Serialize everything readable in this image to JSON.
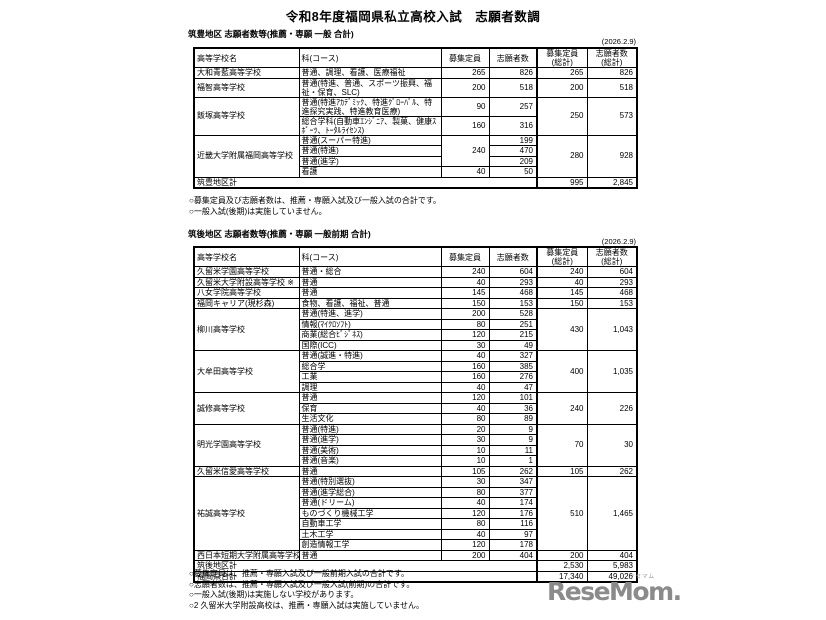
{
  "title": "令和8年度福岡県私立高校入試　志願者数調",
  "logo": {
    "text": "ReseMom.",
    "ruby": "リセマム"
  },
  "tables": [
    {
      "heading": "筑豊地区 志願者数等(推薦・専願 一般 合計)",
      "date": "(2026.2.9)",
      "headers": [
        "高等学校名",
        "科(コース)",
        "募集定員",
        "志願者数",
        "募集定員\n(総計)",
        "志願者数\n(総計)"
      ],
      "schools": [
        {
          "name": "大和青藍高等学校",
          "rows": [
            {
              "course": "普通、調理、看護、医療福祉",
              "capacity": "265",
              "applicants": "826"
            }
          ],
          "total_capacity": "265",
          "total_applicants": "826"
        },
        {
          "name": "福智高等学校",
          "rows": [
            {
              "course": "普通(特進、普通、スポーツ振興、福祉・保育、SLC)",
              "capacity": "200",
              "applicants": "518"
            }
          ],
          "total_capacity": "200",
          "total_applicants": "518"
        },
        {
          "name": "飯塚高等学校",
          "rows": [
            {
              "course": "普通(特進ｱｶﾃﾞﾐｯｸ、特進ｸﾞﾛｰﾊﾞﾙ、特進探究実践、特進教育医療)",
              "capacity": "90",
              "applicants": "257"
            },
            {
              "course": "総合学科(自動車ｴﾝｼﾞﾆｱ、製菓、健康ｽﾎﾟｰﾂ、ﾄｰﾀﾙﾗｲｾﾝｽ)",
              "capacity": "160",
              "applicants": "316"
            }
          ],
          "total_capacity": "250",
          "total_applicants": "573"
        },
        {
          "name": "近畿大学附属福岡高等学校",
          "rows": [
            {
              "course": "普通(スーパー特進)",
              "capacity": "240",
              "capacity_rowspan": 3,
              "applicants": "199"
            },
            {
              "course": "普通(特進)",
              "applicants": "470"
            },
            {
              "course": "普通(進学)",
              "applicants": "209"
            },
            {
              "course": "看護",
              "capacity": "40",
              "applicants": "50"
            }
          ],
          "total_capacity": "280",
          "total_applicants": "928"
        }
      ],
      "footer_rows": [
        {
          "label": "筑豊地区計",
          "capacity": "995",
          "applicants": "2,845"
        }
      ],
      "notes": [
        "○募集定員及び志願者数は、推薦・専願入試及び一般入試の合計です。",
        "○一般入試(後期)は実施していません。"
      ]
    },
    {
      "heading": "筑後地区 志願者数等(推薦・専願 一般前期 合計)",
      "date": "(2026.2.9)",
      "headers": [
        "高等学校名",
        "科(コース)",
        "募集定員",
        "志願者数",
        "募集定員\n(総計)",
        "志願者数\n(総計)"
      ],
      "schools": [
        {
          "name": "久留米学園高等学校",
          "rows": [
            {
              "course": "普通・総合",
              "capacity": "240",
              "applicants": "604"
            }
          ],
          "total_capacity": "240",
          "total_applicants": "604"
        },
        {
          "name": "久留米大学附設高等学校 ※",
          "rows": [
            {
              "course": "普通",
              "capacity": "40",
              "applicants": "293"
            }
          ],
          "total_capacity": "40",
          "total_applicants": "293"
        },
        {
          "name": "八女学院高等学校",
          "rows": [
            {
              "course": "普通",
              "capacity": "145",
              "applicants": "468"
            }
          ],
          "total_capacity": "145",
          "total_applicants": "468"
        },
        {
          "name": "福岡キャリア(現杉森)",
          "rows": [
            {
              "course": "食物、看護、福祉、普通",
              "capacity": "150",
              "applicants": "153"
            }
          ],
          "total_capacity": "150",
          "total_applicants": "153"
        },
        {
          "name": "柳川高等学校",
          "rows": [
            {
              "course": "普通(特進、進学)",
              "capacity": "200",
              "applicants": "528"
            },
            {
              "course": "情報(ﾏｲｸﾛｿﾌﾄ)",
              "capacity": "80",
              "applicants": "251"
            },
            {
              "course": "商業(総合ﾋﾞｼﾞﾈｽ)",
              "capacity": "120",
              "applicants": "215"
            },
            {
              "course": "国際(ICC)",
              "capacity": "30",
              "applicants": "49"
            }
          ],
          "total_capacity": "430",
          "total_applicants": "1,043"
        },
        {
          "name": "大牟田高等学校",
          "rows": [
            {
              "course": "普通(誠進・特進)",
              "capacity": "40",
              "applicants": "327"
            },
            {
              "course": "総合学",
              "capacity": "160",
              "applicants": "385"
            },
            {
              "course": "工業",
              "capacity": "160",
              "applicants": "276"
            },
            {
              "course": "調理",
              "capacity": "40",
              "applicants": "47"
            }
          ],
          "total_capacity": "400",
          "total_applicants": "1,035"
        },
        {
          "name": "誠修高等学校",
          "rows": [
            {
              "course": "普通",
              "capacity": "120",
              "applicants": "101"
            },
            {
              "course": "保育",
              "capacity": "40",
              "applicants": "36"
            },
            {
              "course": "生活文化",
              "capacity": "80",
              "applicants": "89"
            }
          ],
          "total_capacity": "240",
          "total_applicants": "226"
        },
        {
          "name": "明光学園高等学校",
          "rows": [
            {
              "course": "普通(特進)",
              "capacity": "20",
              "applicants": "9"
            },
            {
              "course": "普通(進学)",
              "capacity": "30",
              "applicants": "9"
            },
            {
              "course": "普通(美術)",
              "capacity": "10",
              "applicants": "11"
            },
            {
              "course": "普通(音楽)",
              "capacity": "10",
              "applicants": "1"
            }
          ],
          "total_capacity": "70",
          "total_applicants": "30"
        },
        {
          "name": "久留米信愛高等学校",
          "rows": [
            {
              "course": "普通",
              "capacity": "105",
              "applicants": "262"
            }
          ],
          "total_capacity": "105",
          "total_applicants": "262"
        },
        {
          "name": "祐誠高等学校",
          "rows": [
            {
              "course": "普通(特別選抜)",
              "capacity": "30",
              "applicants": "347"
            },
            {
              "course": "普通(進学総合)",
              "capacity": "80",
              "applicants": "377"
            },
            {
              "course": "普通(ドリーム)",
              "capacity": "40",
              "applicants": "174"
            },
            {
              "course": "ものづくり機械工学",
              "capacity": "120",
              "applicants": "176"
            },
            {
              "course": "自動車工学",
              "capacity": "80",
              "applicants": "116"
            },
            {
              "course": "土木工学",
              "capacity": "40",
              "applicants": "97"
            },
            {
              "course": "創造情報工学",
              "capacity": "120",
              "applicants": "178"
            }
          ],
          "total_capacity": "510",
          "total_applicants": "1,465"
        },
        {
          "name": "西日本短期大学附属高等学校",
          "rows": [
            {
              "course": "普通",
              "capacity": "200",
              "applicants": "404"
            }
          ],
          "total_capacity": "200",
          "total_applicants": "404"
        }
      ],
      "footer_rows": [
        {
          "label": "筑後地区計",
          "capacity": "2,530",
          "applicants": "5,983"
        },
        {
          "label": "福岡県合計",
          "capacity": "17,340",
          "applicants": "49,026"
        }
      ],
      "notes": [
        "○募集定員は、推薦・専願入試及び一般前期入試の合計です。",
        "○志願者数は、推薦・専願入試及び一般入試(前期)の合計です。",
        "○一般入試(後期)は実施しない学校があります。",
        "○2 久留米大学附設高校は、推薦・専願入試は実施していません。"
      ]
    }
  ]
}
